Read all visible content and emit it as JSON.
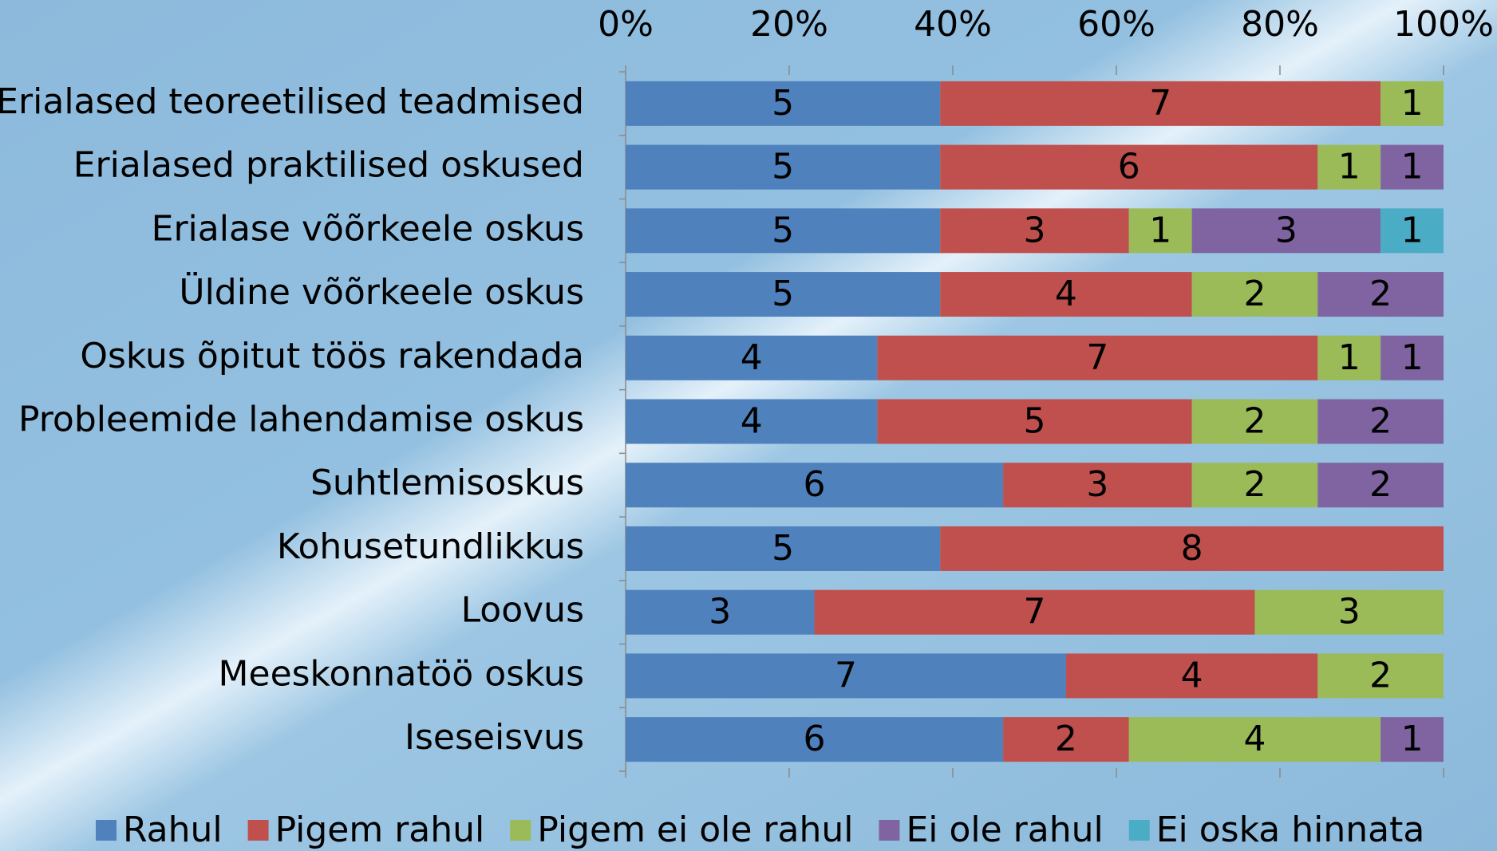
{
  "chart_data": {
    "type": "stacked_barh",
    "categories": [
      "Erialased teoreetilised teadmised",
      "Erialased praktilised oskused",
      "Erialase võõrkeele oskus",
      "Üldine võõrkeele oskus",
      "Oskus õpitut töös rakendada",
      "Probleemide lahendamise oskus",
      "Suhtlemisoskus",
      "Kohusetundlikkus",
      "Loovus",
      "Meeskonnatöö oskus",
      "Iseseisvus"
    ],
    "series": [
      {
        "name": "Rahul",
        "color": "#4f81bd",
        "values": [
          5,
          5,
          5,
          5,
          4,
          4,
          6,
          5,
          3,
          7,
          6
        ]
      },
      {
        "name": "Pigem rahul",
        "color": "#c0504d",
        "values": [
          7,
          6,
          3,
          4,
          7,
          5,
          3,
          8,
          7,
          4,
          2
        ]
      },
      {
        "name": "Pigem ei ole rahul",
        "color": "#9bbb59",
        "values": [
          1,
          1,
          1,
          2,
          1,
          2,
          2,
          0,
          3,
          2,
          4
        ]
      },
      {
        "name": "Ei ole rahul",
        "color": "#8064a2",
        "values": [
          0,
          1,
          3,
          2,
          1,
          2,
          2,
          0,
          0,
          0,
          1
        ]
      },
      {
        "name": "Ei oska hinnata",
        "color": "#4bacc6",
        "values": [
          0,
          0,
          1,
          0,
          0,
          0,
          0,
          0,
          0,
          0,
          0
        ]
      }
    ],
    "xlim": [
      0,
      100
    ],
    "xticks": [
      {
        "value": 0,
        "label": "0%"
      },
      {
        "value": 20,
        "label": "20%"
      },
      {
        "value": 40,
        "label": "40%"
      },
      {
        "value": 60,
        "label": "60%"
      },
      {
        "value": 80,
        "label": "80%"
      },
      {
        "value": 100,
        "label": "100%"
      }
    ],
    "legend": "bottom"
  }
}
